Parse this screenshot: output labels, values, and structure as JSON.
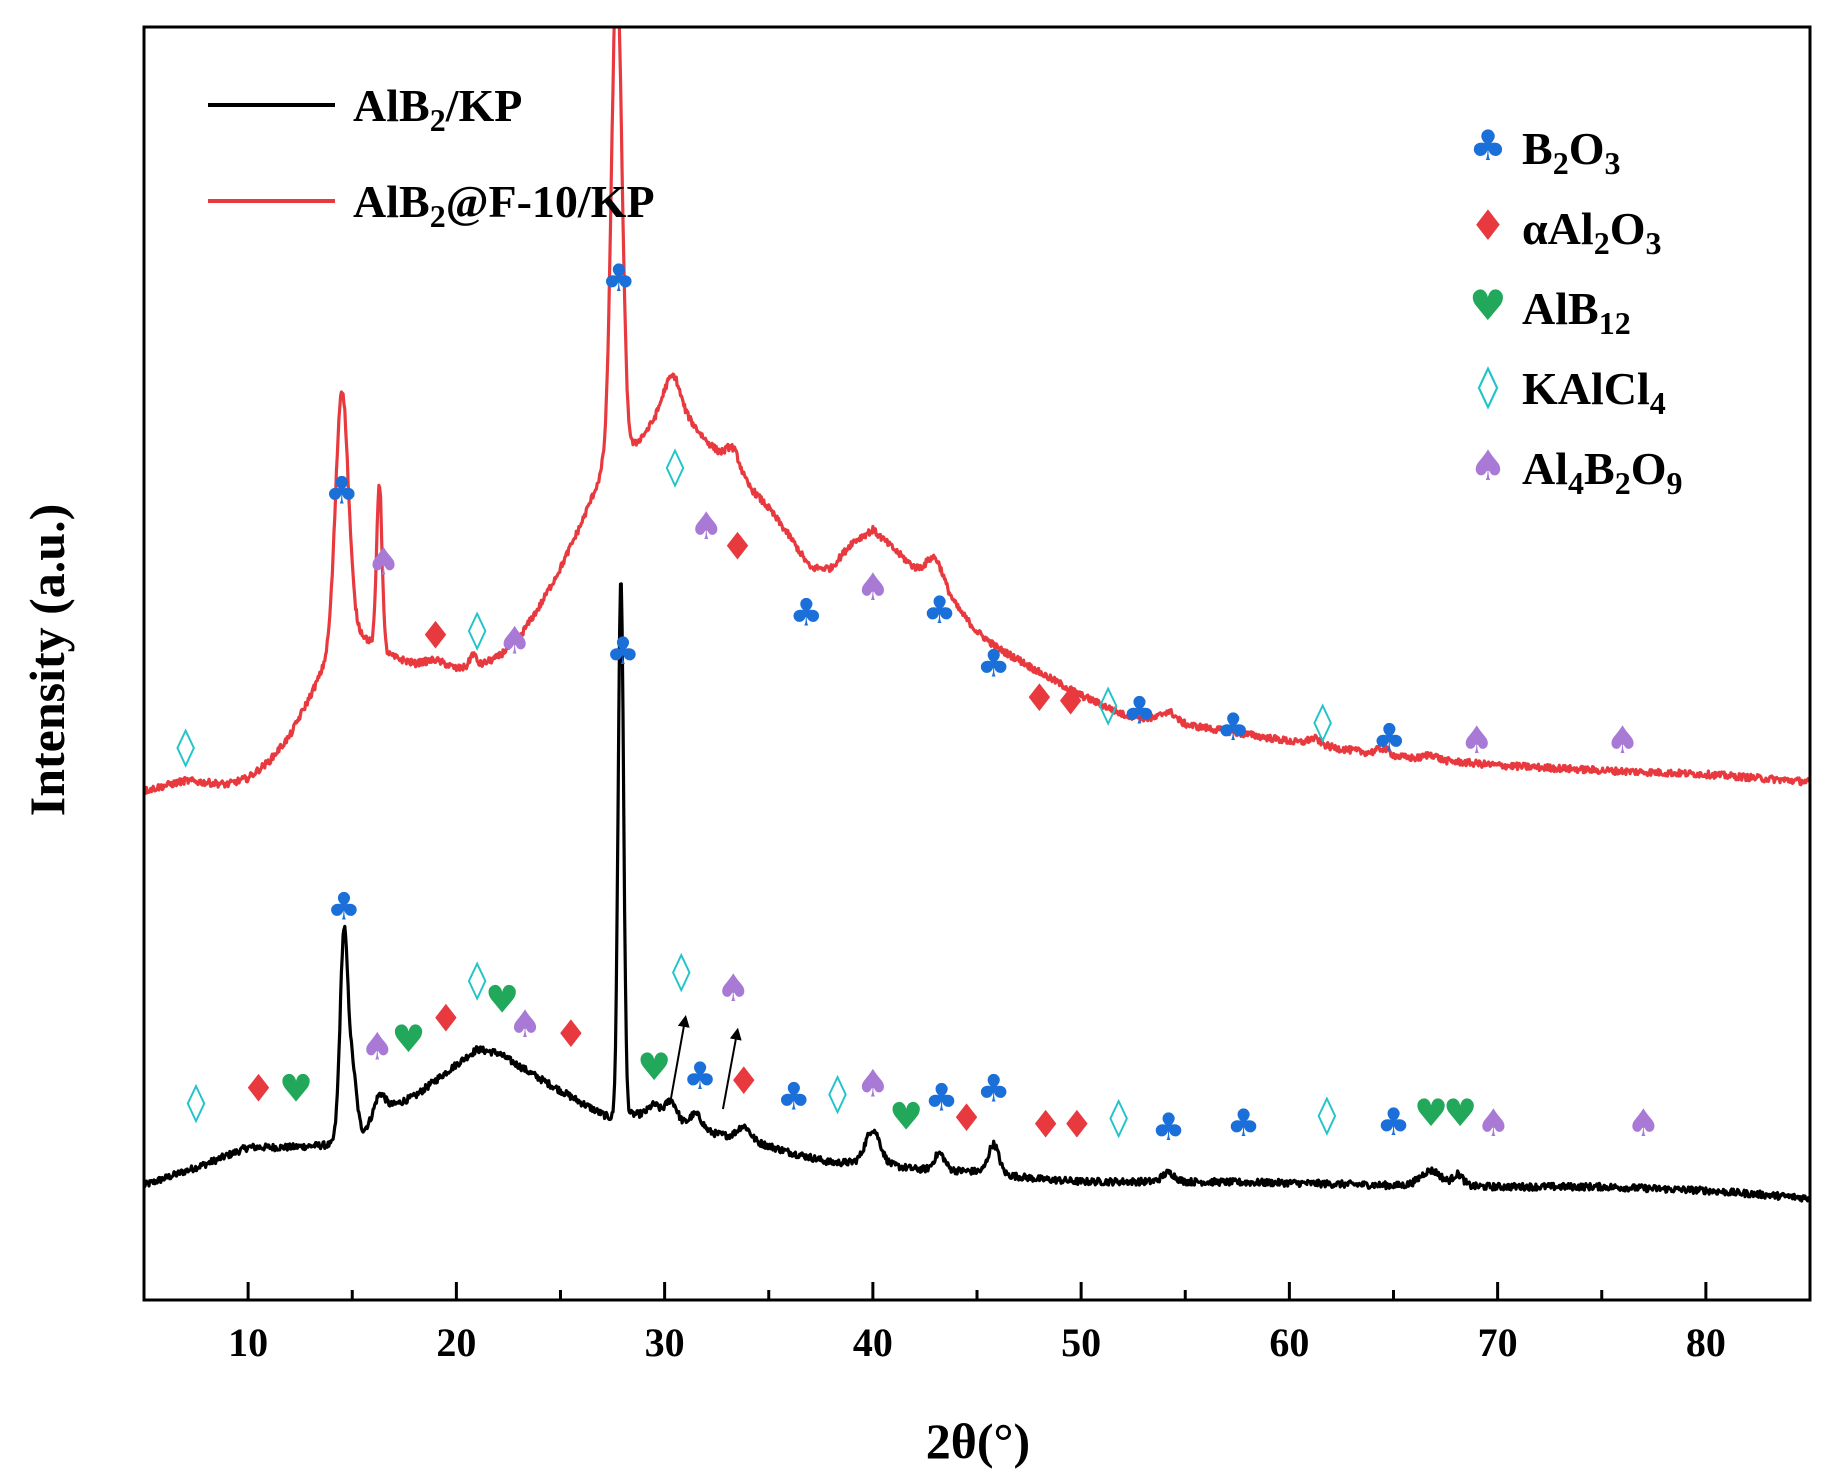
{
  "chart_data": {
    "type": "line",
    "title": "",
    "xlabel": "2θ(°)",
    "ylabel": "Intensity (a.u.)",
    "xlim": [
      5,
      85
    ],
    "ylim": [
      0,
      100
    ],
    "y_ticks_shown": false,
    "x_ticks": [
      10,
      20,
      30,
      40,
      50,
      60,
      70,
      80
    ],
    "x_tick_labels": [
      "10",
      "20",
      "30",
      "40",
      "50",
      "60",
      "70",
      "80"
    ],
    "series": [
      {
        "name": "AlB₂/KP",
        "color": "#000000",
        "baseline_samples": [
          [
            5,
            9.0
          ],
          [
            8,
            10.7
          ],
          [
            10,
            12.0
          ],
          [
            12,
            12.0
          ],
          [
            14,
            12.2
          ],
          [
            14.3,
            13
          ],
          [
            15.5,
            13.2
          ],
          [
            16.5,
            15.0
          ],
          [
            18,
            16.0
          ],
          [
            20,
            18.5
          ],
          [
            21,
            19.7
          ],
          [
            22,
            19.4
          ],
          [
            24,
            17.4
          ],
          [
            26,
            15.5
          ],
          [
            27,
            14.6
          ],
          [
            27.6,
            14.2
          ],
          [
            28.3,
            14.6
          ],
          [
            29,
            14.6
          ],
          [
            30,
            14.0
          ],
          [
            32,
            13.2
          ],
          [
            34,
            12.6
          ],
          [
            36,
            11.6
          ],
          [
            38,
            10.8
          ],
          [
            40,
            10.8
          ],
          [
            42,
            10.3
          ],
          [
            45,
            10.1
          ],
          [
            48,
            9.5
          ],
          [
            50,
            9.3
          ],
          [
            55,
            9.3
          ],
          [
            60,
            9.2
          ],
          [
            65,
            9.0
          ],
          [
            70,
            8.9
          ],
          [
            75,
            8.9
          ],
          [
            80,
            8.6
          ],
          [
            85,
            8.0
          ]
        ],
        "peaks": [
          [
            14.6,
            15.5,
            0.18
          ],
          [
            15.0,
            5.0,
            0.2
          ],
          [
            16.3,
            1.5,
            0.25
          ],
          [
            27.9,
            42.5,
            0.13
          ],
          [
            29.5,
            1.0,
            0.25
          ],
          [
            30.3,
            1.8,
            0.3
          ],
          [
            31.5,
            1.2,
            0.3
          ],
          [
            33.8,
            1.0,
            0.3
          ],
          [
            40.0,
            2.6,
            0.35
          ],
          [
            43.2,
            1.3,
            0.25
          ],
          [
            45.8,
            2.3,
            0.25
          ],
          [
            54.2,
            0.7,
            0.3
          ],
          [
            66.8,
            1.2,
            0.5
          ],
          [
            68.1,
            0.9,
            0.25
          ]
        ]
      },
      {
        "name": "AlB₂@F-10/KP",
        "color": "#e8393f",
        "baseline_samples": [
          [
            5,
            40.0
          ],
          [
            7,
            40.8
          ],
          [
            9,
            40.5
          ],
          [
            10,
            41.0
          ],
          [
            11,
            42.3
          ],
          [
            12,
            44.3
          ],
          [
            13,
            47.5
          ],
          [
            14,
            51.0
          ],
          [
            15,
            53.0
          ],
          [
            16,
            51.5
          ],
          [
            17,
            50.5
          ],
          [
            18,
            50.0
          ],
          [
            19,
            50.3
          ],
          [
            20,
            49.6
          ],
          [
            21,
            49.8
          ],
          [
            22,
            50.5
          ],
          [
            23,
            52.0
          ],
          [
            24,
            54.5
          ],
          [
            25,
            57.5
          ],
          [
            26,
            61.0
          ],
          [
            27,
            65.0
          ],
          [
            28.2,
            66.5
          ],
          [
            29,
            68.0
          ],
          [
            30,
            70.0
          ],
          [
            30.5,
            70.8
          ],
          [
            31,
            69.5
          ],
          [
            32,
            67.5
          ],
          [
            33,
            66.0
          ],
          [
            34,
            64.0
          ],
          [
            35,
            62.2
          ],
          [
            36,
            60.0
          ],
          [
            37,
            57.5
          ],
          [
            38,
            57.5
          ],
          [
            39,
            59.5
          ],
          [
            40,
            60.5
          ],
          [
            41,
            59.0
          ],
          [
            42,
            57.5
          ],
          [
            43,
            56.5
          ],
          [
            44,
            54.5
          ],
          [
            45,
            52.5
          ],
          [
            46,
            51.2
          ],
          [
            47,
            50.3
          ],
          [
            48,
            49.3
          ],
          [
            50,
            47.5
          ],
          [
            52,
            46.0
          ],
          [
            55,
            45.2
          ],
          [
            60,
            43.9
          ],
          [
            65,
            42.7
          ],
          [
            70,
            42.0
          ],
          [
            75,
            41.6
          ],
          [
            80,
            41.3
          ],
          [
            85,
            40.7
          ]
        ],
        "peaks": [
          [
            14.5,
            19.5,
            0.3
          ],
          [
            16.3,
            13.0,
            0.13
          ],
          [
            20.8,
            1.0,
            0.15
          ],
          [
            27.7,
            38.5,
            0.25
          ],
          [
            30.3,
            2.0,
            0.4
          ],
          [
            33.3,
            1.5,
            0.3
          ],
          [
            43.0,
            1.8,
            0.4
          ],
          [
            54.2,
            0.8,
            0.35
          ],
          [
            61.2,
            0.5,
            0.3
          ],
          [
            64.5,
            0.5,
            0.3
          ],
          [
            66.8,
            0.4,
            0.3
          ]
        ]
      }
    ],
    "phase_legend": [
      {
        "symbol": "♣",
        "label": "B",
        "sub1": "2",
        "mid": "O",
        "sub2": "3",
        "color": "#1b6fd9"
      },
      {
        "symbol": "♦",
        "label": "αAl",
        "sub1": "2",
        "mid": "O",
        "sub2": "3",
        "color": "#e8393f"
      },
      {
        "symbol": "♥",
        "label": "AlB",
        "sub1": "12",
        "mid": "",
        "sub2": "",
        "color": "#21a85a"
      },
      {
        "symbol": "◊",
        "label": "KAlCl",
        "sub1": "4",
        "mid": "",
        "sub2": "",
        "color": "#22c4c9"
      },
      {
        "symbol": "♠",
        "label": "Al",
        "sub1": "4",
        "mid": "B",
        "sub2": "2",
        "tail": "O",
        "sub3": "9",
        "color": "#a87ad6"
      }
    ],
    "line_legend": [
      {
        "pre": "AlB",
        "sub": "2",
        "post": "/KP",
        "color": "#000000"
      },
      {
        "pre": "AlB",
        "sub": "2",
        "post": "@F-10/KP",
        "color": "#e8393f"
      }
    ],
    "phase_markers": [
      {
        "phase": "KAlCl4",
        "x": 7.0,
        "y": 43.5
      },
      {
        "phase": "B2O3",
        "x": 14.5,
        "y": 63.6
      },
      {
        "phase": "Al4B2O9",
        "x": 16.5,
        "y": 58.0
      },
      {
        "phase": "αAl2O3",
        "x": 19.0,
        "y": 52.2
      },
      {
        "phase": "KAlCl4",
        "x": 21.0,
        "y": 52.7
      },
      {
        "phase": "Al4B2O9",
        "x": 22.8,
        "y": 51.8
      },
      {
        "phase": "B2O3",
        "x": 27.8,
        "y": 80.3
      },
      {
        "phase": "KAlCl4",
        "x": 30.5,
        "y": 65.5
      },
      {
        "phase": "Al4B2O9",
        "x": 32.0,
        "y": 60.8
      },
      {
        "phase": "αAl2O3",
        "x": 33.5,
        "y": 59.2
      },
      {
        "phase": "B2O3",
        "x": 36.8,
        "y": 54.0
      },
      {
        "phase": "Al4B2O9",
        "x": 40.0,
        "y": 56.0
      },
      {
        "phase": "B2O3",
        "x": 43.2,
        "y": 54.2
      },
      {
        "phase": "B2O3",
        "x": 45.8,
        "y": 50.0
      },
      {
        "phase": "αAl2O3",
        "x": 48.0,
        "y": 47.3
      },
      {
        "phase": "αAl2O3",
        "x": 49.5,
        "y": 47.0
      },
      {
        "phase": "KAlCl4",
        "x": 51.3,
        "y": 46.8
      },
      {
        "phase": "B2O3",
        "x": 52.8,
        "y": 46.3
      },
      {
        "phase": "B2O3",
        "x": 57.3,
        "y": 45.0
      },
      {
        "phase": "KAlCl4",
        "x": 61.6,
        "y": 45.5
      },
      {
        "phase": "B2O3",
        "x": 64.8,
        "y": 44.2
      },
      {
        "phase": "Al4B2O9",
        "x": 69.0,
        "y": 44.0
      },
      {
        "phase": "Al4B2O9",
        "x": 76.0,
        "y": 44.0
      },
      {
        "phase": "B2O3",
        "x": 28.0,
        "y": 51.0
      },
      {
        "phase": "B2O3",
        "x": 14.6,
        "y": 30.9
      },
      {
        "phase": "KAlCl4",
        "x": 7.5,
        "y": 15.6
      },
      {
        "phase": "αAl2O3",
        "x": 10.5,
        "y": 16.6
      },
      {
        "phase": "AlB12",
        "x": 12.3,
        "y": 16.6
      },
      {
        "phase": "Al4B2O9",
        "x": 16.2,
        "y": 19.9
      },
      {
        "phase": "AlB12",
        "x": 17.7,
        "y": 20.5
      },
      {
        "phase": "αAl2O3",
        "x": 19.5,
        "y": 22.1
      },
      {
        "phase": "KAlCl4",
        "x": 21.0,
        "y": 25.2
      },
      {
        "phase": "AlB12",
        "x": 22.2,
        "y": 23.6
      },
      {
        "phase": "Al4B2O9",
        "x": 23.3,
        "y": 21.7
      },
      {
        "phase": "αAl2O3",
        "x": 25.5,
        "y": 20.9
      },
      {
        "phase": "AlB12",
        "x": 29.5,
        "y": 18.3
      },
      {
        "phase": "KAlCl4",
        "x": 30.8,
        "y": 25.9
      },
      {
        "phase": "B2O3",
        "x": 31.7,
        "y": 17.6
      },
      {
        "phase": "Al4B2O9",
        "x": 33.3,
        "y": 24.5
      },
      {
        "phase": "αAl2O3",
        "x": 33.8,
        "y": 17.2
      },
      {
        "phase": "B2O3",
        "x": 36.2,
        "y": 16.0
      },
      {
        "phase": "KAlCl4",
        "x": 38.3,
        "y": 16.3
      },
      {
        "phase": "Al4B2O9",
        "x": 40.0,
        "y": 17.0
      },
      {
        "phase": "AlB12",
        "x": 41.6,
        "y": 14.4
      },
      {
        "phase": "B2O3",
        "x": 43.3,
        "y": 15.9
      },
      {
        "phase": "αAl2O3",
        "x": 44.5,
        "y": 14.3
      },
      {
        "phase": "B2O3",
        "x": 45.8,
        "y": 16.6
      },
      {
        "phase": "αAl2O3",
        "x": 48.3,
        "y": 13.8
      },
      {
        "phase": "αAl2O3",
        "x": 49.8,
        "y": 13.8
      },
      {
        "phase": "KAlCl4",
        "x": 51.8,
        "y": 14.4
      },
      {
        "phase": "B2O3",
        "x": 54.2,
        "y": 13.6
      },
      {
        "phase": "B2O3",
        "x": 57.8,
        "y": 13.9
      },
      {
        "phase": "KAlCl4",
        "x": 61.8,
        "y": 14.6
      },
      {
        "phase": "B2O3",
        "x": 65.0,
        "y": 14.0
      },
      {
        "phase": "AlB12",
        "x": 66.8,
        "y": 14.7
      },
      {
        "phase": "AlB12",
        "x": 68.2,
        "y": 14.7
      },
      {
        "phase": "Al4B2O9",
        "x": 69.8,
        "y": 13.9
      },
      {
        "phase": "Al4B2O9",
        "x": 77.0,
        "y": 13.9
      }
    ],
    "arrows": [
      {
        "from": [
          30.3,
          15.8
        ],
        "to": [
          31.0,
          22.2
        ]
      },
      {
        "from": [
          32.8,
          15.0
        ],
        "to": [
          33.5,
          21.2
        ]
      }
    ]
  }
}
